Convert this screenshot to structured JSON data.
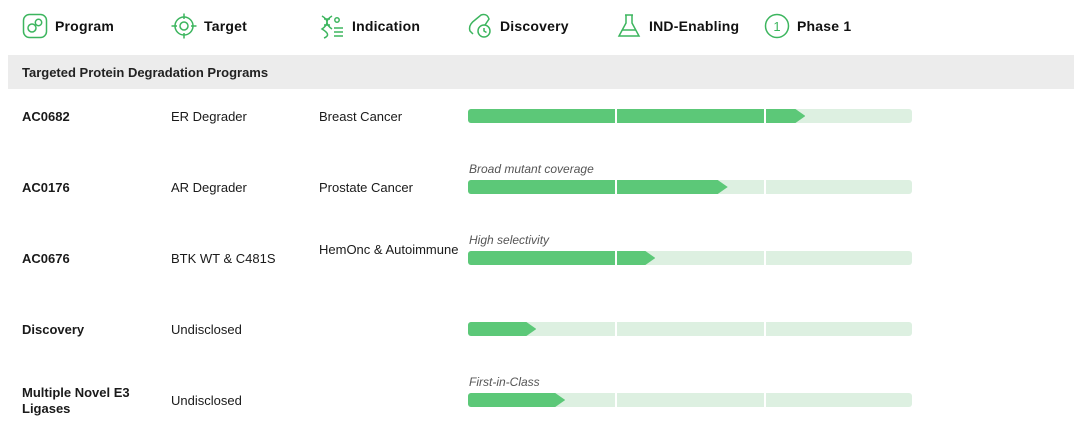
{
  "header": {
    "columns": [
      {
        "label": "Program",
        "icon": "program-icon"
      },
      {
        "label": "Target",
        "icon": "target-icon"
      },
      {
        "label": "Indication",
        "icon": "indication-icon"
      },
      {
        "label": "Discovery",
        "icon": "discovery-icon"
      },
      {
        "label": "IND-Enabling",
        "icon": "flask-icon"
      },
      {
        "label": "Phase 1",
        "icon": "phase-1-icon",
        "icon_text": "1"
      }
    ]
  },
  "section": {
    "title": "Targeted Protein Degradation Programs"
  },
  "colors": {
    "accent": "#5cc878",
    "track": "#ddf0e1",
    "section_bg": "#ececec"
  },
  "rows": [
    {
      "program": "AC0682",
      "target": "ER Degrader",
      "indication": "Breast Cancer",
      "note": "",
      "progress": 0.76
    },
    {
      "program": "AC0176",
      "target": "AR Degrader",
      "indication": "Prostate Cancer",
      "note": "Broad mutant coverage",
      "progress": 0.585
    },
    {
      "program": "AC0676",
      "target": "BTK WT & C481S",
      "indication": "HemOnc & Autoimmune",
      "note": "High selectivity",
      "progress": 0.422
    },
    {
      "program": "Discovery",
      "target": "Undisclosed",
      "indication": "",
      "note": "",
      "progress": 0.154
    },
    {
      "program": "Multiple Novel E3 Ligases",
      "target": "Undisclosed",
      "indication": "",
      "note": "First-in-Class",
      "progress": 0.219
    }
  ]
}
